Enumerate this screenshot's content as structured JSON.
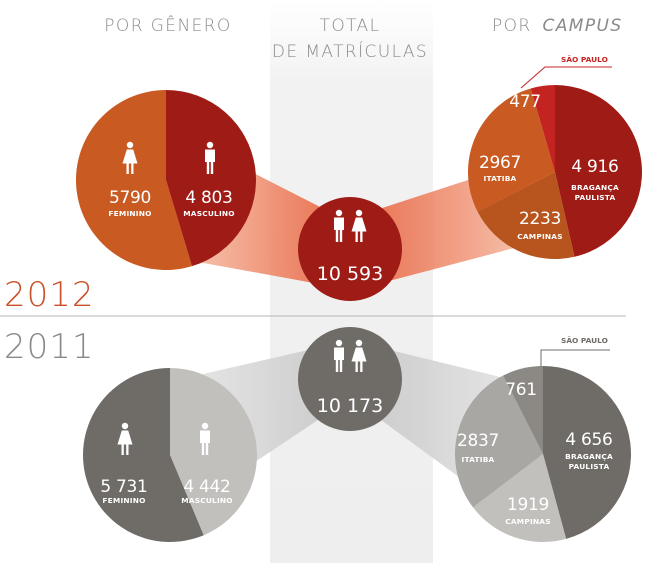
{
  "headers": {
    "gender": "POR GÊNERO",
    "total_line1": "TOTAL",
    "total_line2": "DE MATRÍCULAS",
    "campus_prefix": "POR",
    "campus_word": "CAMPUS"
  },
  "colors": {
    "red_dark": "#9e1b16",
    "red_orange": "#c95a22",
    "red_bright": "#c42421",
    "red_camp": "#b8541e",
    "gray_dark": "#6f6c68",
    "gray_mid": "#8c8985",
    "gray_light": "#a9a7a3",
    "gray_lighter": "#c2c0bc"
  },
  "chart_data": [
    {
      "type": "pie",
      "year": "2012",
      "title": "POR GÊNERO",
      "slices": [
        {
          "label": "MASCULINO",
          "value": 4803,
          "display": "4 803",
          "color": "#9e1b16"
        },
        {
          "label": "FEMININO",
          "value": 5790,
          "display": "5790",
          "color": "#c95a22"
        }
      ]
    },
    {
      "type": "pie",
      "year": "2012",
      "title": "POR CAMPUS",
      "slices": [
        {
          "label": "BRAGANÇA PAULISTA",
          "value": 4916,
          "display": "4 916",
          "color": "#9e1b16"
        },
        {
          "label": "CAMPINAS",
          "value": 2233,
          "display": "2233",
          "color": "#b8541e"
        },
        {
          "label": "ITATIBA",
          "value": 2967,
          "display": "2967",
          "color": "#c95a22"
        },
        {
          "label": "SÃO PAULO",
          "value": 477,
          "display": "477",
          "color": "#c42421"
        }
      ]
    },
    {
      "type": "pie",
      "year": "2011",
      "title": "POR GÊNERO",
      "slices": [
        {
          "label": "MASCULINO",
          "value": 4442,
          "display": "4 442",
          "color": "#c2c0bc"
        },
        {
          "label": "FEMININO",
          "value": 5731,
          "display": "5 731",
          "color": "#6f6c68"
        }
      ]
    },
    {
      "type": "pie",
      "year": "2011",
      "title": "POR CAMPUS",
      "slices": [
        {
          "label": "BRAGANÇA PAULISTA",
          "value": 4656,
          "display": "4 656",
          "color": "#6f6c68"
        },
        {
          "label": "CAMPINAS",
          "value": 1919,
          "display": "1919",
          "color": "#c2c0bc"
        },
        {
          "label": "ITATIBA",
          "value": 2837,
          "display": "2837",
          "color": "#a9a7a3"
        },
        {
          "label": "SÃO PAULO",
          "value": 761,
          "display": "761",
          "color": "#8c8985"
        }
      ]
    }
  ],
  "totals": [
    {
      "year": "2012",
      "display": "10 593",
      "value": 10593
    },
    {
      "year": "2011",
      "display": "10 173",
      "value": 10173
    }
  ],
  "years": {
    "y2012": "2012",
    "y2011": "2011"
  }
}
